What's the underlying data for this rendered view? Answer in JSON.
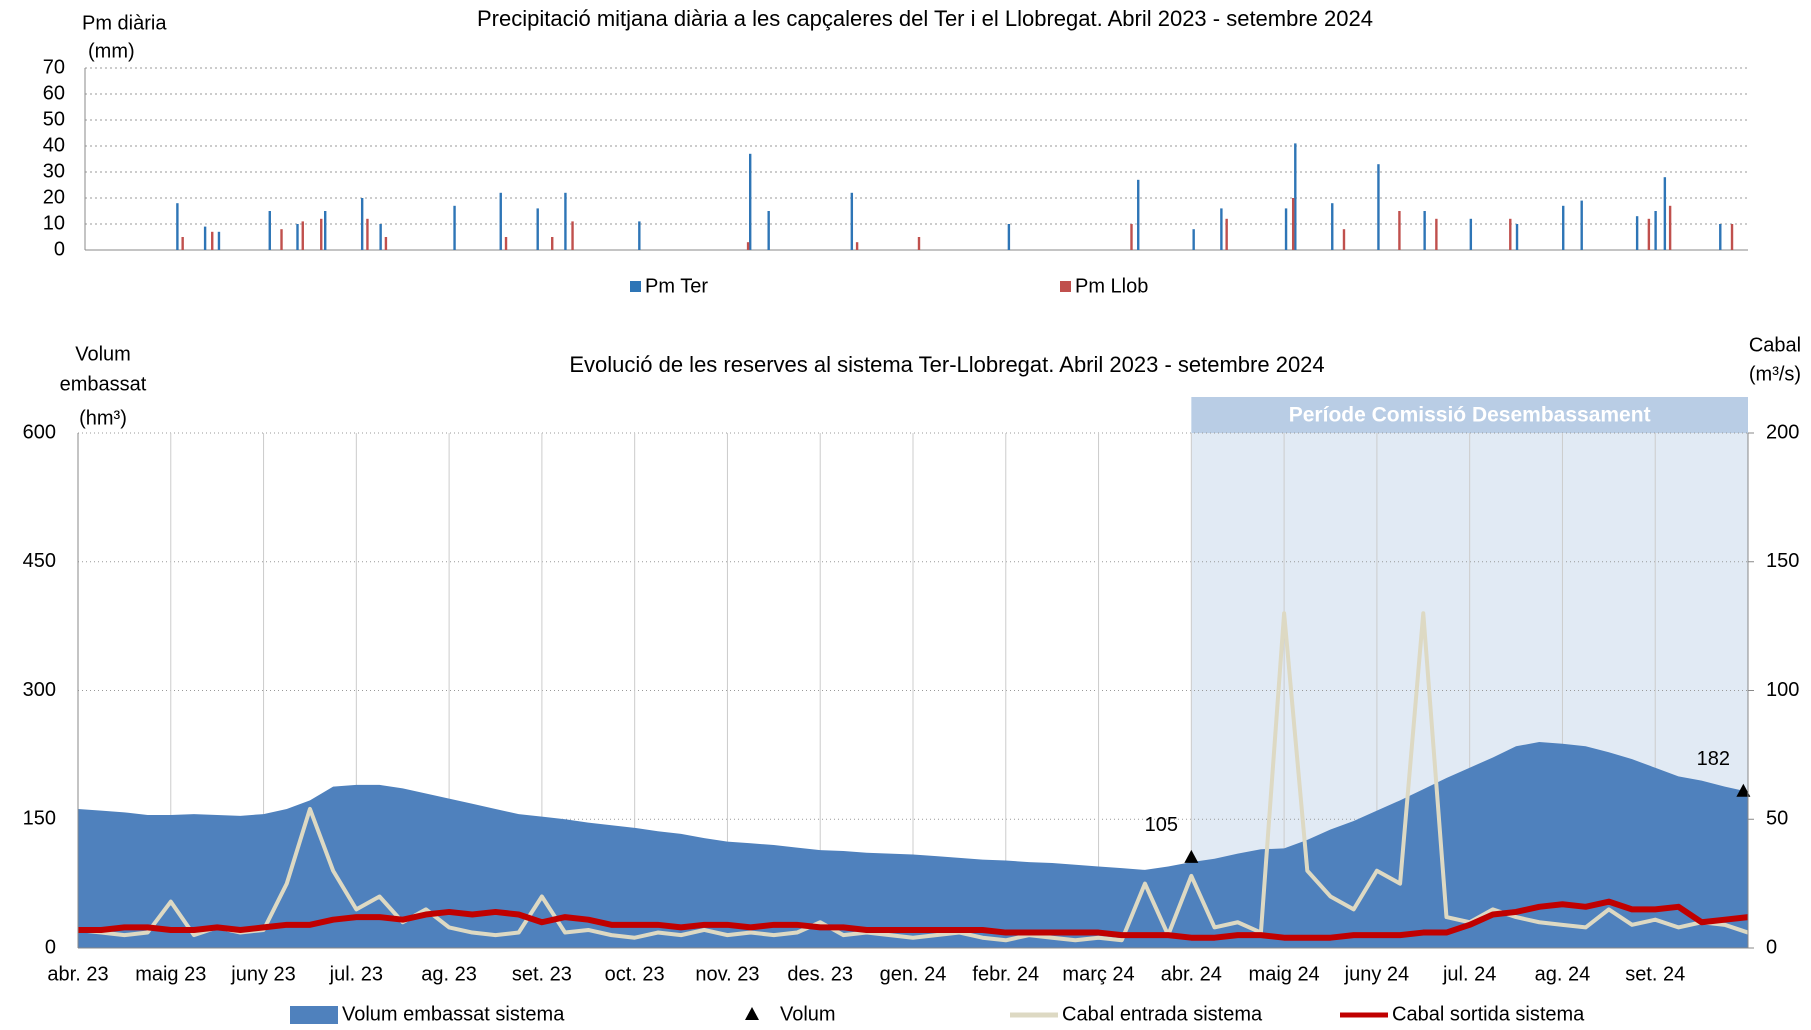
{
  "chart_data": [
    {
      "type": "bar",
      "title": "Precipitació mitjana diària a les capçaleres del Ter i el Llobregat.  Abril 2023 - setembre 2024",
      "y_label": [
        "Pm diària",
        "(mm)"
      ],
      "xlim": [
        0,
        18
      ],
      "ylim": [
        0,
        70
      ],
      "yticks": [
        0,
        10,
        20,
        30,
        40,
        50,
        60,
        70
      ],
      "grid": true,
      "series": [
        {
          "name": "Pm Ter",
          "color": "#2e75b6",
          "x": [
            1.0,
            1.3,
            1.45,
            2.0,
            2.3,
            2.6,
            3.0,
            3.2,
            4.0,
            4.5,
            4.9,
            5.2,
            6.0,
            7.2,
            7.4,
            8.3,
            10.0,
            11.4,
            12.0,
            12.3,
            13.0,
            13.1,
            13.5,
            14.0,
            14.5,
            15.0,
            15.5,
            16.0,
            16.2,
            16.8,
            17.0,
            17.1,
            17.7
          ],
          "values": [
            18,
            9,
            7,
            15,
            10,
            15,
            20,
            10,
            17,
            22,
            16,
            22,
            11,
            37,
            15,
            22,
            10,
            27,
            8,
            16,
            16,
            41,
            18,
            33,
            15,
            12,
            10,
            17,
            19,
            13,
            15,
            28,
            10
          ]
        },
        {
          "name": "Pm Llob",
          "color": "#c0504d",
          "x": [
            1.03,
            1.35,
            2.1,
            2.33,
            2.53,
            3.03,
            3.23,
            4.53,
            5.03,
            5.25,
            7.15,
            8.33,
            9.0,
            11.3,
            12.33,
            13.05,
            13.6,
            14.2,
            14.6,
            15.4,
            16.9,
            17.13,
            17.8
          ],
          "values": [
            5,
            7,
            8,
            11,
            12,
            12,
            5,
            5,
            5,
            11,
            3,
            3,
            5,
            10,
            12,
            20,
            8,
            15,
            12,
            12,
            12,
            17,
            10
          ]
        }
      ]
    },
    {
      "type": "area",
      "title": "Evolució de les reserves al sistema Ter-Llobregat. Abril 2023 - setembre 2024",
      "y_label": [
        "Volum",
        "embassat",
        "(hm³)"
      ],
      "y2_label": [
        "Cabal",
        "(m³/s)"
      ],
      "period": {
        "label": "Període Comissió Desembassament",
        "x": [
          12,
          18
        ]
      },
      "xlim": [
        0,
        18
      ],
      "xticks": [
        {
          "value": 0,
          "label": "abr. 23"
        },
        {
          "value": 1,
          "label": "maig 23"
        },
        {
          "value": 2,
          "label": "juny 23"
        },
        {
          "value": 3,
          "label": "jul. 23"
        },
        {
          "value": 4,
          "label": "ag. 23"
        },
        {
          "value": 5,
          "label": "set. 23"
        },
        {
          "value": 6,
          "label": "oct. 23"
        },
        {
          "value": 7,
          "label": "nov. 23"
        },
        {
          "value": 8,
          "label": "des. 23"
        },
        {
          "value": 9,
          "label": "gen. 24"
        },
        {
          "value": 10,
          "label": "febr. 24"
        },
        {
          "value": 11,
          "label": "març 24"
        },
        {
          "value": 12,
          "label": "abr. 24"
        },
        {
          "value": 13,
          "label": "maig 24"
        },
        {
          "value": 14,
          "label": "juny 24"
        },
        {
          "value": 15,
          "label": "jul. 24"
        },
        {
          "value": 16,
          "label": "ag. 24"
        },
        {
          "value": 17,
          "label": "set. 24"
        }
      ],
      "ylim": [
        0,
        600
      ],
      "yticks": [
        0,
        150,
        300,
        450,
        600
      ],
      "y2lim": [
        0,
        200
      ],
      "y2ticks": [
        0,
        50,
        100,
        150,
        200
      ],
      "grid": true,
      "x": [
        0,
        0.25,
        0.5,
        0.75,
        1,
        1.25,
        1.5,
        1.75,
        2,
        2.25,
        2.5,
        2.75,
        3,
        3.25,
        3.5,
        3.75,
        4,
        4.25,
        4.5,
        4.75,
        5,
        5.25,
        5.5,
        5.75,
        6,
        6.25,
        6.5,
        6.75,
        7,
        7.25,
        7.5,
        7.75,
        8,
        8.25,
        8.5,
        8.75,
        9,
        9.25,
        9.5,
        9.75,
        10,
        10.25,
        10.5,
        10.75,
        11,
        11.25,
        11.5,
        11.75,
        12,
        12.25,
        12.5,
        12.75,
        13,
        13.25,
        13.5,
        13.75,
        14,
        14.25,
        14.5,
        14.75,
        15,
        15.25,
        15.5,
        15.75,
        16,
        16.25,
        16.5,
        16.75,
        17,
        17.25,
        17.5,
        17.75,
        18
      ],
      "series": [
        {
          "name": "Volum embassat sistema",
          "kind": "area",
          "color": "#4f81bd",
          "values": [
            162,
            160,
            158,
            155,
            155,
            156,
            155,
            154,
            156,
            162,
            172,
            188,
            190,
            190,
            186,
            180,
            174,
            168,
            162,
            156,
            153,
            150,
            146,
            143,
            140,
            136,
            133,
            128,
            124,
            122,
            120,
            117,
            114,
            113,
            111,
            110,
            109,
            107,
            105,
            103,
            102,
            100,
            99,
            97,
            95,
            93,
            91,
            95,
            100,
            104,
            110,
            115,
            116,
            126,
            138,
            148,
            160,
            172,
            185,
            198,
            210,
            222,
            235,
            240,
            238,
            235,
            228,
            220,
            210,
            200,
            195,
            188,
            182
          ]
        },
        {
          "name": "Volum",
          "kind": "marker",
          "color": "#000000",
          "x": [
            12,
            17.95
          ],
          "values": [
            105,
            182
          ]
        },
        {
          "name": "Cabal entrada sistema",
          "kind": "line",
          "axis": "y2",
          "color": "#ddd9c3",
          "values": [
            7,
            6,
            5,
            6,
            18,
            5,
            8,
            6,
            7,
            25,
            54,
            30,
            15,
            20,
            10,
            15,
            8,
            6,
            5,
            6,
            20,
            6,
            7,
            5,
            4,
            6,
            5,
            7,
            5,
            6,
            5,
            6,
            10,
            5,
            6,
            5,
            4,
            5,
            6,
            4,
            3,
            5,
            4,
            3,
            4,
            3,
            25,
            5,
            28,
            8,
            10,
            6,
            130,
            30,
            20,
            15,
            30,
            25,
            130,
            12,
            10,
            15,
            12,
            10,
            9,
            8,
            15,
            9,
            11,
            8,
            10,
            9,
            6
          ]
        },
        {
          "name": "Cabal sortida sistema",
          "kind": "line",
          "axis": "y2",
          "color": "#c00000",
          "values": [
            7,
            7,
            8,
            8,
            7,
            7,
            8,
            7,
            8,
            9,
            9,
            11,
            12,
            12,
            11,
            13,
            14,
            13,
            14,
            13,
            10,
            12,
            11,
            9,
            9,
            9,
            8,
            9,
            9,
            8,
            9,
            9,
            8,
            8,
            7,
            7,
            7,
            7,
            7,
            7,
            6,
            6,
            6,
            6,
            6,
            5,
            5,
            5,
            4,
            4,
            5,
            5,
            4,
            4,
            4,
            5,
            5,
            5,
            6,
            6,
            9,
            13,
            14,
            16,
            17,
            16,
            18,
            15,
            15,
            16,
            10,
            11,
            12
          ]
        }
      ]
    }
  ]
}
